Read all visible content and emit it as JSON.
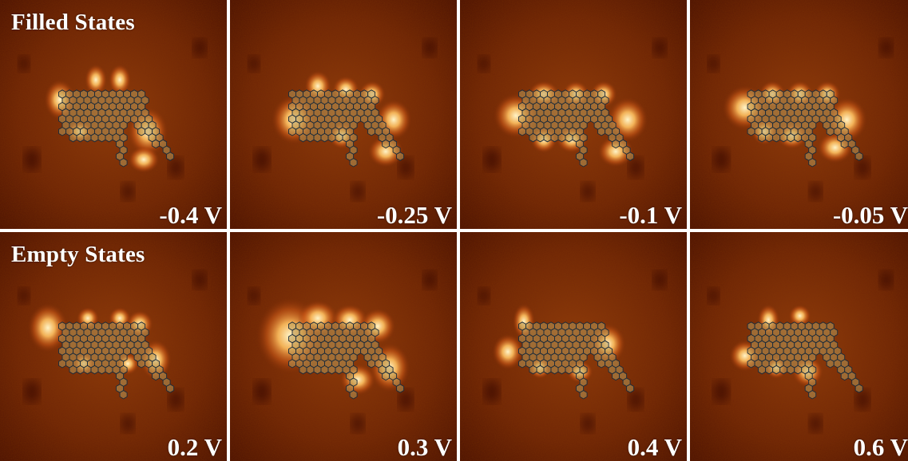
{
  "rows": [
    {
      "label": "Filled States",
      "panels": [
        {
          "voltage": "-0.4 V"
        },
        {
          "voltage": "-0.25 V"
        },
        {
          "voltage": "-0.1 V"
        },
        {
          "voltage": "-0.05 V"
        }
      ]
    },
    {
      "label": "Empty States",
      "panels": [
        {
          "voltage": "0.2 V"
        },
        {
          "voltage": "0.3 V"
        },
        {
          "voltage": "0.4 V"
        },
        {
          "voltage": "0.6 V"
        }
      ]
    }
  ],
  "colors": {
    "background_dark": "#3a0800",
    "mid": "#8a3008",
    "bright": "#ffe8a0",
    "overlay": "#c8b070",
    "divider": "#ffffff"
  }
}
